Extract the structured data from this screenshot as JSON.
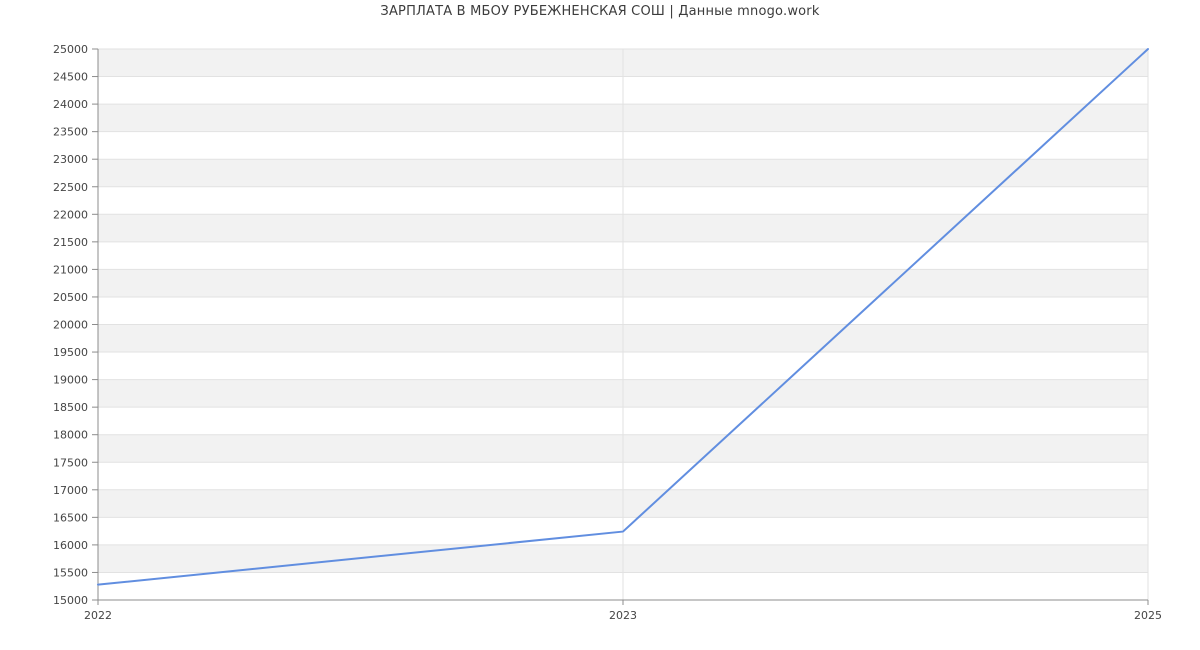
{
  "page": {
    "background": "#ffffff"
  },
  "header": {
    "title": "ЗАРПЛАТА В МБОУ РУБЕЖНЕНСКАЯ СОШ | Данные mnogo.work"
  },
  "chart_data": {
    "type": "line",
    "title": "ЗАРПЛАТА В МБОУ РУБЕЖНЕНСКАЯ СОШ | Данные mnogo.work",
    "categories": [
      "2022",
      "2023",
      "2025"
    ],
    "values": [
      15279,
      16242,
      25000
    ],
    "xlabel": "",
    "ylabel": "",
    "ylim": [
      15000,
      25000
    ],
    "ytick_step": 500,
    "ytick_labels": [
      "25000",
      "24500",
      "24000",
      "23500",
      "23000",
      "22500",
      "22000",
      "21500",
      "21000",
      "20500",
      "20000",
      "19500",
      "19000",
      "18500",
      "18000",
      "17500",
      "17000",
      "16500",
      "16000",
      "15500",
      "15000"
    ],
    "grid": true,
    "legend_position": "none",
    "band_pattern": "alternating horizontal stripes, top band shaded",
    "colors": {
      "line": "#618ee0",
      "band": "#f2f2f2",
      "gridline": "#e2e2e2",
      "axis": "#8c8c8c",
      "tick_label": "#454545",
      "title": "#3c3c3c"
    }
  }
}
